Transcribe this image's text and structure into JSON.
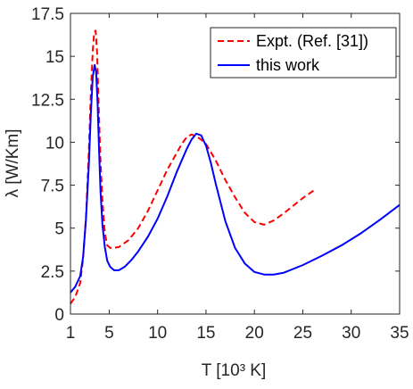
{
  "chart_data": {
    "type": "line",
    "title": "",
    "xlabel": "T [10³ K]",
    "ylabel": "λ [W/Km]",
    "xlim": [
      1,
      35
    ],
    "ylim": [
      0,
      17.5
    ],
    "xticks": [
      1,
      5,
      10,
      15,
      20,
      25,
      30,
      35
    ],
    "yticks": [
      0,
      2.5,
      5,
      7.5,
      10,
      12.5,
      15,
      17.5
    ],
    "xtick_labels": [
      "1",
      "5",
      "10",
      "15",
      "20",
      "25",
      "30",
      "35"
    ],
    "ytick_labels": [
      "0",
      "2.5",
      "5",
      "7.5",
      "10",
      "12.5",
      "15",
      "17.5"
    ],
    "grid": false,
    "legend_position": "top-right",
    "series": [
      {
        "name": "Expt. (Ref. [31])",
        "style": "dashed",
        "color": "#ff0000",
        "x": [
          1.0,
          1.5,
          2.0,
          2.3,
          2.6,
          2.9,
          3.1,
          3.3,
          3.45,
          3.6,
          3.75,
          3.9,
          4.1,
          4.3,
          4.55,
          4.8,
          5.1,
          5.5,
          6.0,
          7.0,
          8.0,
          9.0,
          10.0,
          11.0,
          12.0,
          12.5,
          13.0,
          13.5,
          14.0,
          14.5,
          15.0,
          16.0,
          17.0,
          18.0,
          19.0,
          20.0,
          21.0,
          22.0,
          23.0,
          24.0,
          25.0,
          26.4
        ],
        "y": [
          0.6,
          1.0,
          1.8,
          3.2,
          5.6,
          9.5,
          12.8,
          15.3,
          16.4,
          16.5,
          15.2,
          12.3,
          9.0,
          6.6,
          4.7,
          4.0,
          3.85,
          3.85,
          3.9,
          4.3,
          5.0,
          6.0,
          7.2,
          8.4,
          9.4,
          9.9,
          10.3,
          10.45,
          10.35,
          10.15,
          9.9,
          8.95,
          7.8,
          6.8,
          5.9,
          5.35,
          5.2,
          5.45,
          5.85,
          6.3,
          6.75,
          7.3
        ]
      },
      {
        "name": "this work",
        "style": "solid",
        "color": "#0000ff",
        "x": [
          1.0,
          1.5,
          2.0,
          2.3,
          2.6,
          2.9,
          3.1,
          3.3,
          3.5,
          3.65,
          3.8,
          3.95,
          4.1,
          4.3,
          4.55,
          4.8,
          5.1,
          5.5,
          6.0,
          6.6,
          7.3,
          8.0,
          9.0,
          10.0,
          11.0,
          12.0,
          13.0,
          13.5,
          14.0,
          14.5,
          15.0,
          15.5,
          16.0,
          17.0,
          18.0,
          19.0,
          20.0,
          21.0,
          22.0,
          23.0,
          25.0,
          27.0,
          29.0,
          31.0,
          33.0,
          35.0
        ],
        "y": [
          1.25,
          1.6,
          2.2,
          3.3,
          5.5,
          8.7,
          11.6,
          13.8,
          14.5,
          14.1,
          12.3,
          9.6,
          7.2,
          5.2,
          3.9,
          3.1,
          2.75,
          2.55,
          2.55,
          2.75,
          3.15,
          3.65,
          4.5,
          5.55,
          6.85,
          8.3,
          9.6,
          10.15,
          10.5,
          10.4,
          9.8,
          8.8,
          7.6,
          5.4,
          3.85,
          2.95,
          2.45,
          2.3,
          2.3,
          2.4,
          2.85,
          3.4,
          4.0,
          4.7,
          5.5,
          6.35
        ]
      }
    ]
  }
}
